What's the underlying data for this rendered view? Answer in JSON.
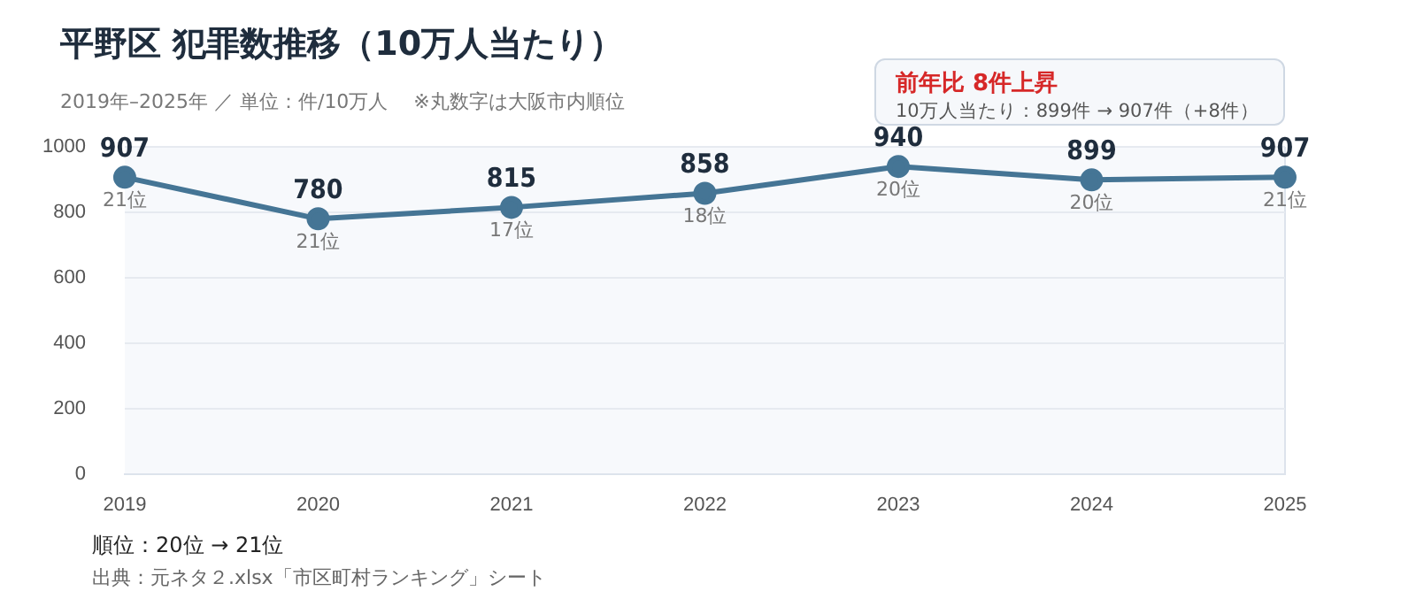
{
  "chart_data": {
    "type": "line",
    "title": "平野区  犯罪数推移（10万人当たり）",
    "subtitle": "2019年–2025年 ／ 単位：件/10万人　 ※丸数字は大阪市内順位",
    "categories": [
      "2019",
      "2020",
      "2021",
      "2022",
      "2023",
      "2024",
      "2025"
    ],
    "series": [
      {
        "color": "#457595",
        "values": [
          907,
          780,
          815,
          858,
          940,
          899,
          907
        ]
      }
    ],
    "ylim": [
      0,
      1000
    ],
    "yticks": [
      0,
      200,
      400,
      600,
      800,
      1000
    ],
    "grid": "y",
    "marker": "circle",
    "line_style": "solid",
    "data_labels": true,
    "annotations": [
      "前年比  8件上昇",
      "10万人当たり：899件 → 907件（+8件）",
      "順位：20位 → 21位",
      "出典：元ネタ２.xlsx「市区町村ランキング」シート",
      {
        "text": "21位",
        "x": "2019",
        "y": 907
      },
      {
        "text": "21位",
        "x": "2020",
        "y": 780
      },
      {
        "text": "17位",
        "x": "2021",
        "y": 815
      },
      {
        "text": "18位",
        "x": "2022",
        "y": 858
      },
      {
        "text": "20位",
        "x": "2023",
        "y": 940
      },
      {
        "text": "20位",
        "x": "2024",
        "y": 899
      },
      {
        "text": "21位",
        "x": "2025",
        "y": 907
      }
    ]
  }
}
